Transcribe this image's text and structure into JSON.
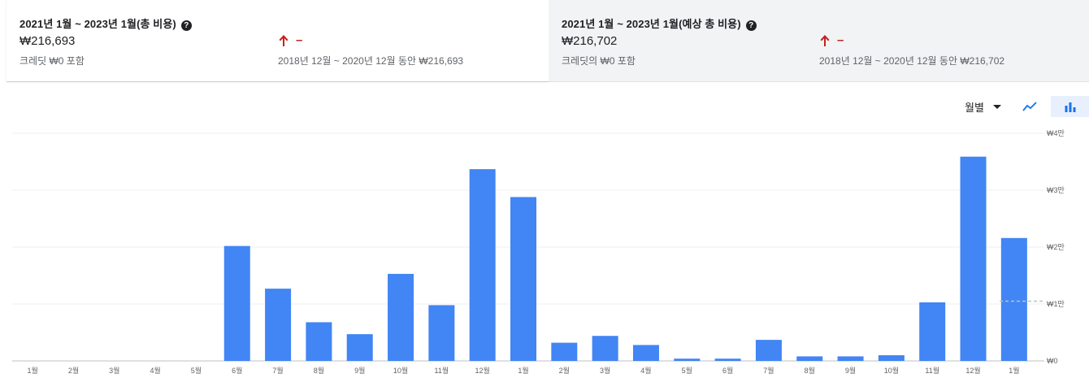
{
  "summary": {
    "actual": {
      "title": "2021년 1월 ~ 2023년 1월(총 비용)",
      "amount": "₩216,693",
      "credit_note": "크레딧 ₩0 포함",
      "trend_value": "–",
      "comparison": "2018년 12월 ~ 2020년 12월 동안 ₩216,693"
    },
    "forecast": {
      "title": "2021년 1월 ~ 2023년 1월(예상 총 비용)",
      "amount": "₩216,702",
      "credit_note": "크레딧의 ₩0 포함",
      "trend_value": "–",
      "comparison": "2018년 12월 ~ 2020년 12월 동안 ₩216,702"
    },
    "help_glyph": "?",
    "trend_color": "#c5221f"
  },
  "controls": {
    "period_label": "월별",
    "line_chart_icon": "show-line-chart-icon",
    "bar_chart_icon": "show-bar-chart-icon",
    "active_view": "bar",
    "accent_color": "#1a73e8"
  },
  "chart_data": {
    "type": "bar",
    "categories": [
      "1월",
      "2월",
      "3월",
      "4월",
      "5월",
      "6월",
      "7월",
      "8월",
      "9월",
      "10월",
      "11월",
      "12월",
      "1월",
      "2월",
      "3월",
      "4월",
      "5월",
      "6월",
      "7월",
      "8월",
      "9월",
      "10월",
      "11월",
      "12월",
      "1월"
    ],
    "values": [
      0,
      0,
      0,
      0,
      0,
      20200,
      12700,
      6800,
      4700,
      15300,
      9800,
      33700,
      28800,
      3200,
      4400,
      2800,
      400,
      400,
      3700,
      800,
      800,
      1000,
      10300,
      35900,
      21600
    ],
    "y_ticks": [
      "₩0",
      "₩1만",
      "₩2만",
      "₩3만",
      "₩4만"
    ],
    "ylim": [
      0,
      40000
    ],
    "reference_line_value": 10500,
    "bar_color": "#4285f4",
    "grid": true,
    "title": "",
    "xlabel": "",
    "ylabel": ""
  }
}
